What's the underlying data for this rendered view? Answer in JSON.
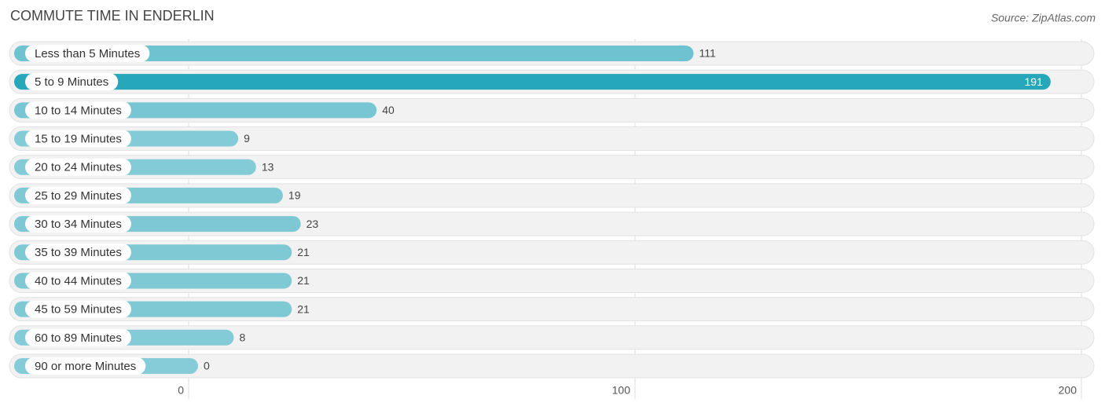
{
  "chart_data": {
    "type": "bar",
    "orientation": "horizontal",
    "title": "COMMUTE TIME IN ENDERLIN",
    "source": "Source: ZipAtlas.com",
    "categories": [
      "Less than 5 Minutes",
      "5 to 9 Minutes",
      "10 to 14 Minutes",
      "15 to 19 Minutes",
      "20 to 24 Minutes",
      "25 to 29 Minutes",
      "30 to 34 Minutes",
      "35 to 39 Minutes",
      "40 to 44 Minutes",
      "45 to 59 Minutes",
      "60 to 89 Minutes",
      "90 or more Minutes"
    ],
    "values": [
      111,
      191,
      40,
      9,
      13,
      19,
      23,
      21,
      21,
      21,
      8,
      0
    ],
    "colors": [
      "#6fc3d1",
      "#26a7ba",
      "#78c6d3",
      "#82cbd7",
      "#82cbd7",
      "#7fc9d5",
      "#7dc8d4",
      "#7fc9d5",
      "#7fc9d5",
      "#7fc9d5",
      "#82cbd7",
      "#85ccd8"
    ],
    "xlim": [
      0,
      200
    ],
    "xticks": [
      0,
      100,
      200
    ],
    "grid": true
  }
}
